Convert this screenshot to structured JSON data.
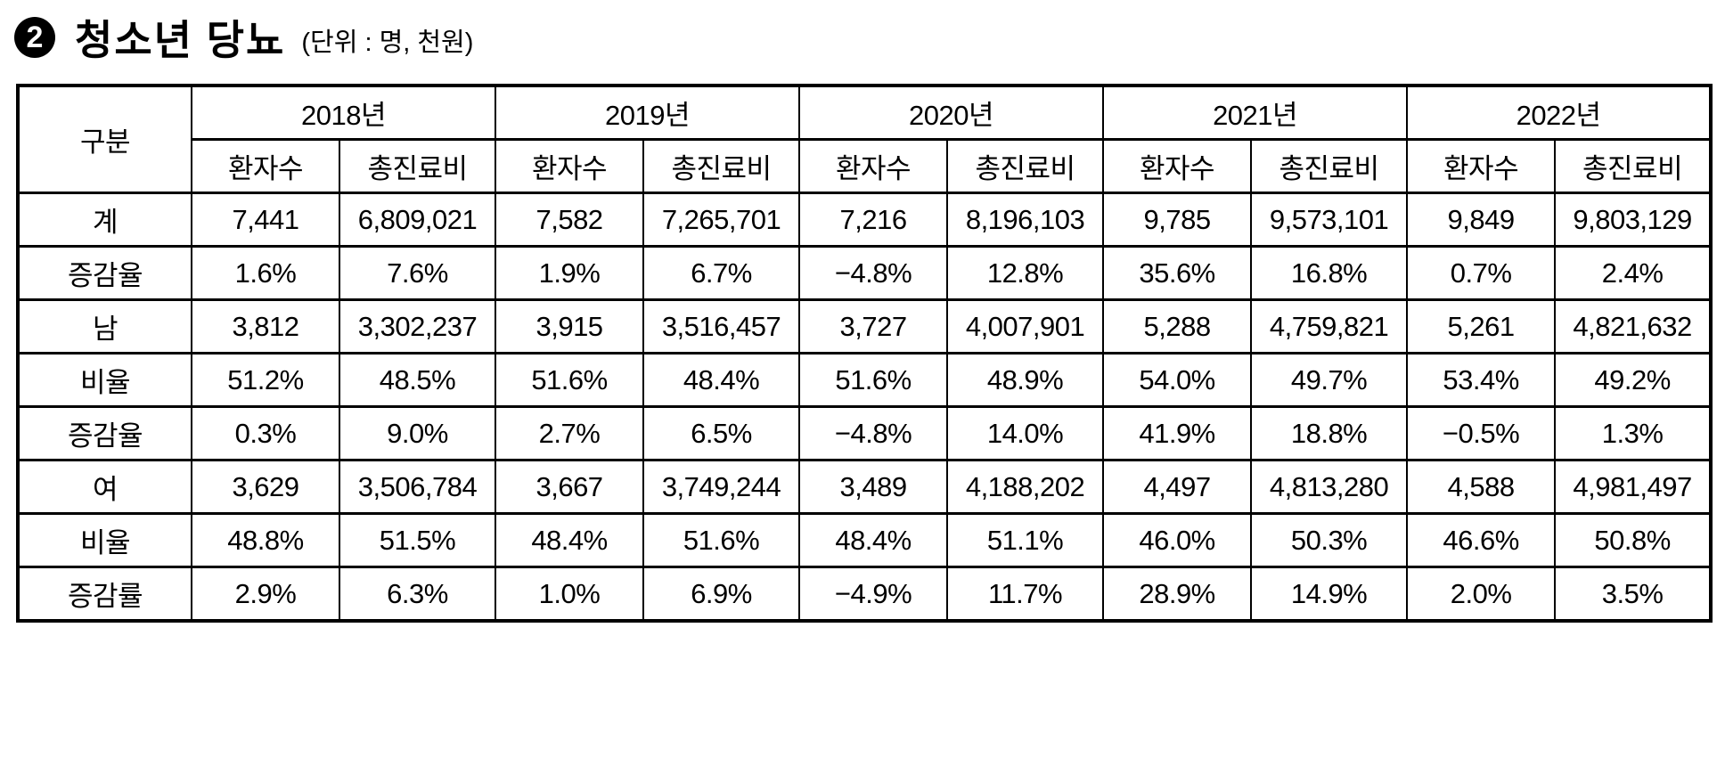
{
  "title": {
    "badge": "2",
    "text": "청소년 당뇨",
    "unit": "(단위 : 명, 천원)"
  },
  "table": {
    "corner_header": "구분",
    "years": [
      "2018년",
      "2019년",
      "2020년",
      "2021년",
      "2022년"
    ],
    "sub_headers": [
      "환자수",
      "총진료비"
    ],
    "rows": [
      {
        "label": "계",
        "values": [
          "7,441",
          "6,809,021",
          "7,582",
          "7,265,701",
          "7,216",
          "8,196,103",
          "9,785",
          "9,573,101",
          "9,849",
          "9,803,129"
        ]
      },
      {
        "label": "증감율",
        "values": [
          "1.6%",
          "7.6%",
          "1.9%",
          "6.7%",
          "−4.8%",
          "12.8%",
          "35.6%",
          "16.8%",
          "0.7%",
          "2.4%"
        ]
      },
      {
        "label": "남",
        "values": [
          "3,812",
          "3,302,237",
          "3,915",
          "3,516,457",
          "3,727",
          "4,007,901",
          "5,288",
          "4,759,821",
          "5,261",
          "4,821,632"
        ]
      },
      {
        "label": "비율",
        "values": [
          "51.2%",
          "48.5%",
          "51.6%",
          "48.4%",
          "51.6%",
          "48.9%",
          "54.0%",
          "49.7%",
          "53.4%",
          "49.2%"
        ]
      },
      {
        "label": "증감율",
        "values": [
          "0.3%",
          "9.0%",
          "2.7%",
          "6.5%",
          "−4.8%",
          "14.0%",
          "41.9%",
          "18.8%",
          "−0.5%",
          "1.3%"
        ]
      },
      {
        "label": "여",
        "values": [
          "3,629",
          "3,506,784",
          "3,667",
          "3,749,244",
          "3,489",
          "4,188,202",
          "4,497",
          "4,813,280",
          "4,588",
          "4,981,497"
        ]
      },
      {
        "label": "비율",
        "values": [
          "48.8%",
          "51.5%",
          "48.4%",
          "51.6%",
          "48.4%",
          "51.1%",
          "46.0%",
          "50.3%",
          "46.6%",
          "50.8%"
        ]
      },
      {
        "label": "증감률",
        "values": [
          "2.9%",
          "6.3%",
          "1.0%",
          "6.9%",
          "−4.9%",
          "11.7%",
          "28.9%",
          "14.9%",
          "2.0%",
          "3.5%"
        ]
      }
    ]
  }
}
